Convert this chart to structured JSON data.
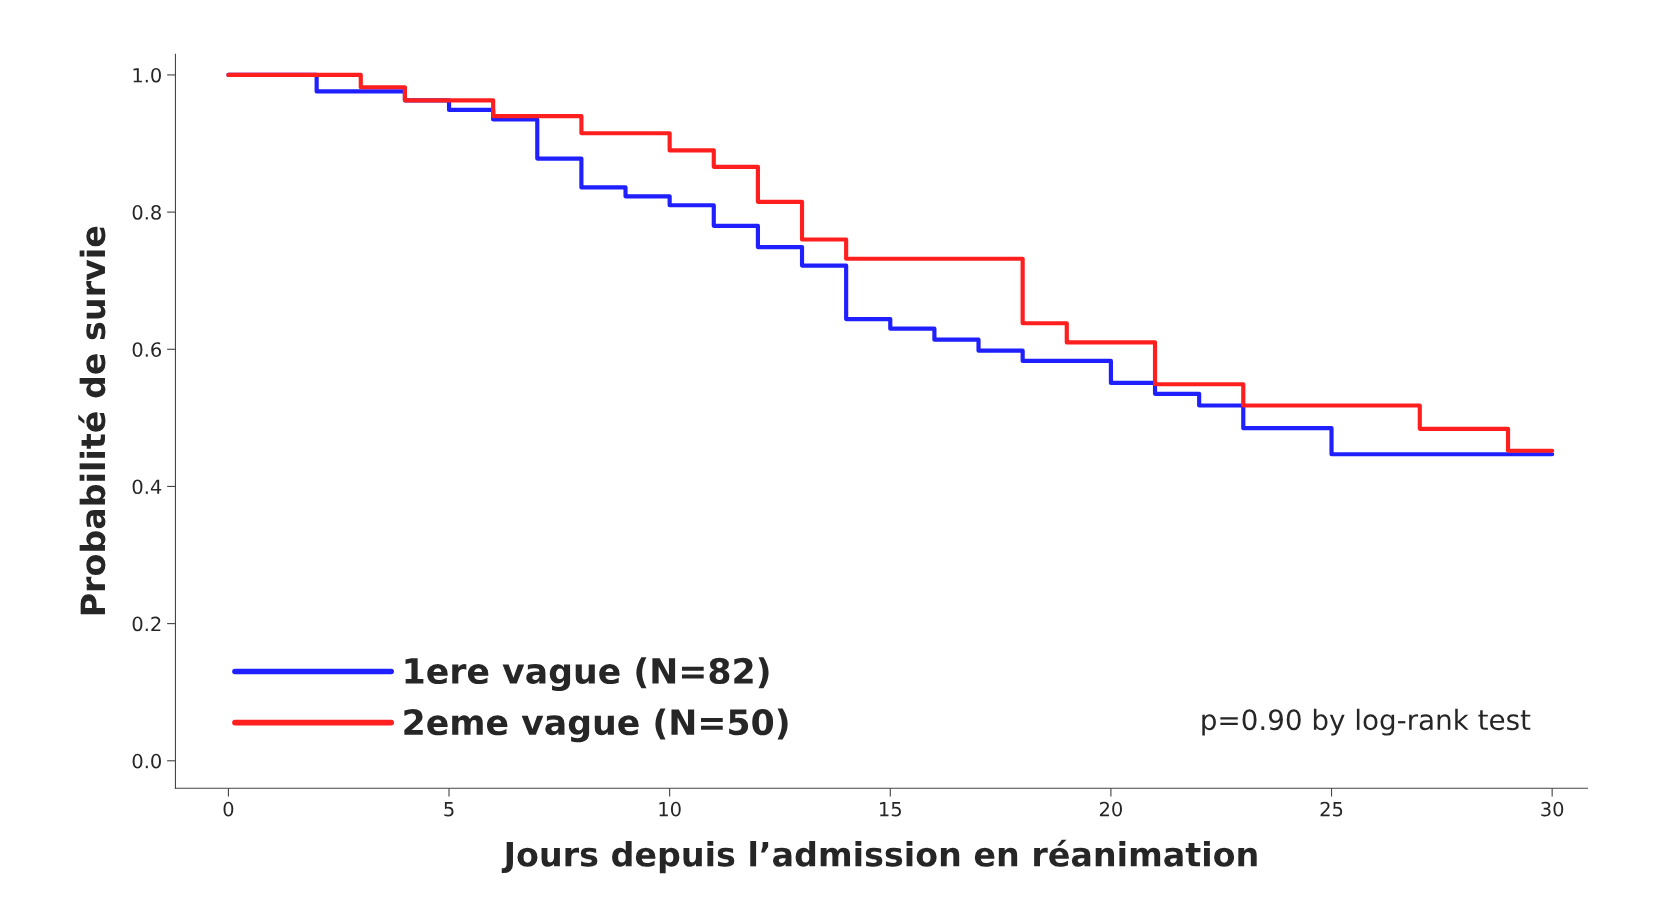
{
  "chart_data": {
    "type": "step",
    "xlabel": "Jours depuis l’admission en réanimation",
    "ylabel": "Probabilité de survie",
    "series": [
      {
        "name": "1ere vague (N=82)",
        "color": "#1f1fff",
        "x": [
          0,
          2,
          4,
          5,
          6,
          7,
          8,
          9,
          10,
          11,
          12,
          13,
          14,
          15,
          16,
          17,
          18,
          20,
          21,
          22,
          23,
          25,
          30
        ],
        "values": [
          1.0,
          0.976,
          0.963,
          0.949,
          0.935,
          0.878,
          0.836,
          0.823,
          0.81,
          0.78,
          0.749,
          0.722,
          0.644,
          0.63,
          0.614,
          0.598,
          0.583,
          0.551,
          0.535,
          0.518,
          0.485,
          0.447,
          0.447
        ]
      },
      {
        "name": "2eme vague (N=50)",
        "color": "#ff1f1f",
        "x": [
          0,
          3,
          4,
          6,
          8,
          10,
          11,
          12,
          13,
          14,
          18,
          19,
          21,
          23,
          27,
          29,
          30
        ],
        "values": [
          1.0,
          0.982,
          0.963,
          0.94,
          0.915,
          0.89,
          0.866,
          0.815,
          0.76,
          0.732,
          0.638,
          0.61,
          0.549,
          0.518,
          0.484,
          0.452,
          0.452
        ]
      }
    ],
    "xlim": [
      -1.2,
      30.8
    ],
    "xticks": [
      0,
      5,
      10,
      15,
      20,
      25,
      30
    ],
    "ylim": [
      -0.04,
      1.03
    ],
    "yticks": [
      {
        "value": 0,
        "label": "0.0"
      },
      {
        "value": 0.2,
        "label": "0.2"
      },
      {
        "value": 0.4,
        "label": "0.4"
      },
      {
        "value": 0.6,
        "label": "0.6"
      },
      {
        "value": 0.8,
        "label": "0.8"
      },
      {
        "value": 1,
        "label": "1.0"
      }
    ],
    "annotations": [
      "p=0.90 by log-rank test"
    ],
    "legend": "bottom left",
    "grid": false,
    "line_style": "solid",
    "marker": "none"
  }
}
